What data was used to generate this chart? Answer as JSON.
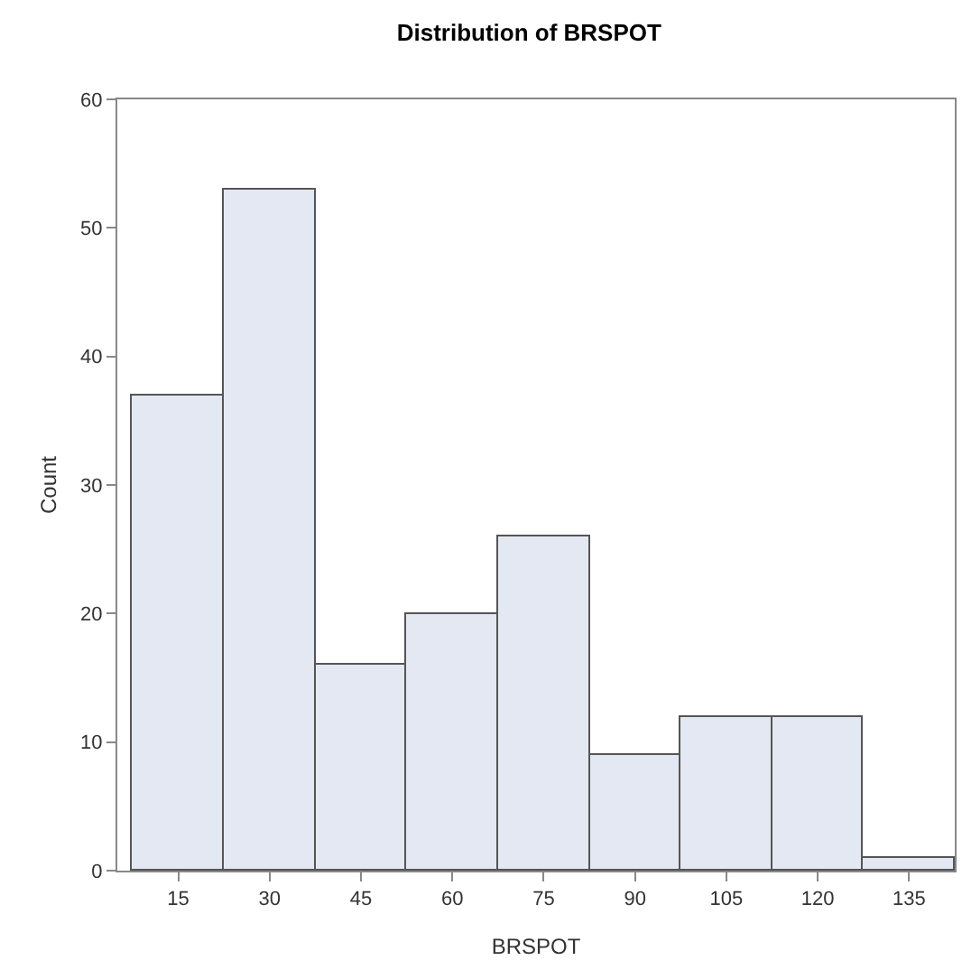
{
  "chart_data": {
    "type": "histogram",
    "title": "Distribution of BRSPOT",
    "xlabel": "BRSPOT",
    "ylabel": "Count",
    "bins": [
      7.5,
      22.5,
      37.5,
      52.5,
      67.5,
      82.5,
      97.5,
      112.5,
      127.5,
      142.5
    ],
    "values": [
      37,
      53,
      16,
      20,
      26,
      9,
      12,
      12,
      1
    ],
    "color": "#e4e8f2",
    "xlim": [
      5,
      142.5
    ],
    "xticks": [
      15,
      30,
      45,
      60,
      75,
      90,
      105,
      120,
      135
    ],
    "ylim": [
      0,
      60
    ],
    "yticks": [
      0,
      10,
      20,
      30,
      40,
      50,
      60
    ],
    "grid": false
  }
}
